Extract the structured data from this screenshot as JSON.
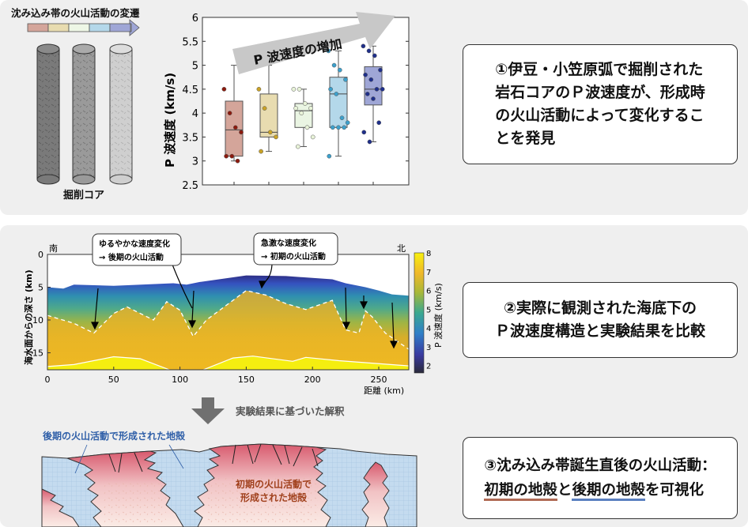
{
  "top": {
    "transition_title": "沈み込み帯の火山活動の変遷",
    "transition_colors": [
      "#d4a59a",
      "#e8dcb0",
      "#eef7e6",
      "#b4d8ea",
      "#9fa6d6"
    ],
    "core_label": "掘削コア",
    "trend_arrow_label": "P 波速度の増加",
    "finding_box": [
      "①伊豆・小笠原弧で掘削された",
      "岩石コアのＰ波速度が、形成時",
      "の火山活動によって変化するこ",
      "とを発見"
    ]
  },
  "chart_data": {
    "type": "box",
    "ylabel": "P 波速度 (km/s)",
    "ylim": [
      2.5,
      6
    ],
    "yticks": [
      "2.5",
      "3",
      "3.5",
      "4",
      "4.5",
      "5",
      "5.5",
      "6"
    ],
    "series": [
      {
        "fill": "#d4a59a",
        "dot": "#8b1a0e",
        "q1": 3.1,
        "median": 3.65,
        "q3": 4.25,
        "whisker_low": 3.0,
        "whisker_high": 5.0,
        "points": [
          4.5,
          4.0,
          3.7,
          3.6,
          3.1,
          3.1,
          3.0
        ]
      },
      {
        "fill": "#e8dcb0",
        "dot": "#c9a227",
        "q1": 3.5,
        "median": 3.6,
        "q3": 4.4,
        "whisker_low": 3.2,
        "whisker_high": 5.0,
        "points": [
          4.5,
          4.1,
          3.6,
          3.5,
          3.2
        ]
      },
      {
        "fill": "#eaf5e3",
        "dot": "#e8f3d8",
        "q1": 3.7,
        "median": 4.05,
        "q3": 4.2,
        "whisker_low": 3.3,
        "whisker_high": 4.5,
        "points": [
          4.5,
          4.5,
          4.2,
          4.1,
          4.1,
          4.0,
          3.7,
          3.5,
          3.3
        ]
      },
      {
        "fill": "#b4d8ea",
        "dot": "#3da0cc",
        "q1": 3.7,
        "median": 4.4,
        "q3": 4.75,
        "whisker_low": 3.1,
        "whisker_high": 5.3,
        "points": [
          5.3,
          5.0,
          4.9,
          4.7,
          4.5,
          4.4,
          3.9,
          3.8,
          3.7,
          3.7,
          3.7,
          3.1
        ]
      },
      {
        "fill": "#9fa6d6",
        "dot": "#1f2f8a",
        "q1": 4.17,
        "median": 4.5,
        "q3": 4.97,
        "whisker_low": 3.4,
        "whisker_high": 5.4,
        "points": [
          5.4,
          5.3,
          5.2,
          4.9,
          4.8,
          4.7,
          4.5,
          4.5,
          4.4,
          4.3,
          3.8,
          3.6,
          3.4
        ]
      }
    ]
  },
  "section": {
    "south_label": "南",
    "north_label": "北",
    "ylabel": "海水面からの深さ (km)",
    "xlabel": "距離 (km)",
    "xticks": [
      "0",
      "50",
      "100",
      "150",
      "200",
      "250"
    ],
    "yticks": [
      "0",
      "5",
      "10",
      "15"
    ],
    "colorbar_label": "P 波速度 (km/s)",
    "colorbar_ticks": [
      "2",
      "3",
      "4",
      "5",
      "6",
      "7",
      "8"
    ],
    "callout_gradual": [
      "ゆるやかな速度変化",
      "→ 後期の火山活動"
    ],
    "callout_abrupt": [
      "急激な速度変化",
      "→ 初期の火山活動"
    ],
    "comparison_box": [
      "②実際に観測された海底下の",
      "Ｐ波速度構造と実験結果を比較"
    ]
  },
  "interpretation": {
    "arrow_label": "実験結果に基づいた解釈",
    "late_crust_label": "後期の火山活動で形成された地殻",
    "early_crust_label": [
      "初期の火山活動で",
      "形成された地殻"
    ],
    "late_color": "#2f5fa8",
    "early_color": "#a0401c",
    "summary_box": {
      "line1": "③沈み込み帯誕生直後の火山活動：",
      "early": "初期の地殻",
      "and": "と",
      "late": "後期の地殻",
      "tail": "を可視化"
    },
    "underline_early": "#b06a55",
    "underline_late": "#5a80c0"
  }
}
